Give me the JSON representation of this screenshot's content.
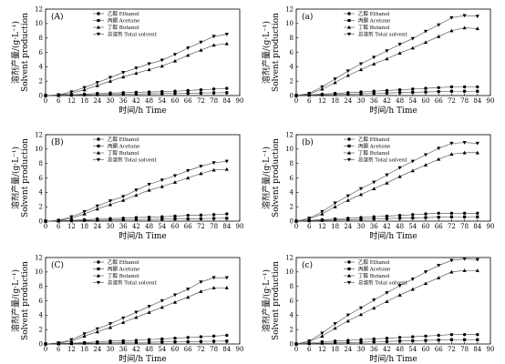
{
  "chart_data": [
    {
      "type": "line",
      "panel_label": "(A)",
      "xlabel": "时间/h Time",
      "ylabel_cn": "溶剂产量/(g·L⁻¹)",
      "ylabel_en": "Solvent production",
      "xlim": [
        0,
        90
      ],
      "ylim": [
        0,
        12
      ],
      "xticks": [
        0,
        6,
        12,
        18,
        24,
        30,
        36,
        42,
        48,
        54,
        60,
        66,
        72,
        78,
        84,
        90
      ],
      "yticks": [
        0,
        2,
        4,
        6,
        8,
        10,
        12
      ],
      "x": [
        0,
        6,
        12,
        18,
        24,
        30,
        36,
        42,
        48,
        54,
        60,
        66,
        72,
        78,
        84
      ],
      "series": [
        {
          "name": "乙醇 Ethanol",
          "marker": "circle",
          "values": [
            0,
            0.05,
            0.1,
            0.2,
            0.3,
            0.35,
            0.4,
            0.45,
            0.5,
            0.55,
            0.6,
            0.7,
            0.8,
            0.9,
            1.0
          ]
        },
        {
          "name": "丙酮 Acetone",
          "marker": "square",
          "values": [
            0,
            0.02,
            0.05,
            0.1,
            0.12,
            0.15,
            0.2,
            0.22,
            0.25,
            0.28,
            0.3,
            0.32,
            0.35,
            0.38,
            0.4
          ]
        },
        {
          "name": "丁醇 Butanol",
          "marker": "triangle-up",
          "values": [
            0,
            0.05,
            0.3,
            0.8,
            1.4,
            2.0,
            2.6,
            3.1,
            3.6,
            4.1,
            4.8,
            5.6,
            6.3,
            7.0,
            7.2
          ]
        },
        {
          "name": "总溶剂 Total solvent",
          "marker": "triangle-down",
          "values": [
            0,
            0.1,
            0.5,
            1.1,
            1.8,
            2.5,
            3.2,
            3.8,
            4.4,
            4.9,
            5.7,
            6.6,
            7.4,
            8.2,
            8.5
          ]
        }
      ]
    },
    {
      "type": "line",
      "panel_label": "(a)",
      "xlabel": "时间/h Time",
      "ylabel_cn": "溶剂产量/(g·L⁻¹)",
      "ylabel_en": "Solvent production",
      "xlim": [
        0,
        90
      ],
      "ylim": [
        0,
        12
      ],
      "xticks": [
        0,
        6,
        12,
        18,
        24,
        30,
        36,
        42,
        48,
        54,
        60,
        66,
        72,
        78,
        84,
        90
      ],
      "yticks": [
        0,
        2,
        4,
        6,
        8,
        10,
        12
      ],
      "x": [
        0,
        6,
        12,
        18,
        24,
        30,
        36,
        42,
        48,
        54,
        60,
        66,
        72,
        78,
        84
      ],
      "series": [
        {
          "name": "乙醇 Ethanol",
          "marker": "circle",
          "values": [
            0,
            0.1,
            0.2,
            0.3,
            0.4,
            0.5,
            0.6,
            0.7,
            0.8,
            0.9,
            1.0,
            1.1,
            1.2,
            1.2,
            1.2
          ]
        },
        {
          "name": "丙酮 Acetone",
          "marker": "square",
          "values": [
            0,
            0.05,
            0.1,
            0.15,
            0.2,
            0.25,
            0.3,
            0.35,
            0.4,
            0.45,
            0.5,
            0.55,
            0.6,
            0.6,
            0.6
          ]
        },
        {
          "name": "丁醇 Butanol",
          "marker": "triangle-up",
          "values": [
            0,
            0.2,
            0.9,
            1.8,
            2.8,
            3.6,
            4.4,
            5.1,
            5.9,
            6.6,
            7.4,
            8.2,
            9.0,
            9.4,
            9.3
          ]
        },
        {
          "name": "总溶剂 Total solvent",
          "marker": "triangle-down",
          "values": [
            0,
            0.3,
            1.2,
            2.3,
            3.4,
            4.4,
            5.3,
            6.2,
            7.1,
            7.9,
            8.9,
            9.8,
            10.8,
            11.1,
            11.0
          ]
        }
      ]
    },
    {
      "type": "line",
      "panel_label": "(B)",
      "xlabel": "时间/h Time",
      "ylabel_cn": "溶剂产量/(g·L⁻¹)",
      "ylabel_en": "Solvent production",
      "xlim": [
        0,
        90
      ],
      "ylim": [
        0,
        12
      ],
      "xticks": [
        0,
        6,
        12,
        18,
        24,
        30,
        36,
        42,
        48,
        54,
        60,
        66,
        72,
        78,
        84,
        90
      ],
      "yticks": [
        0,
        2,
        4,
        6,
        8,
        10,
        12
      ],
      "x": [
        0,
        6,
        12,
        18,
        24,
        30,
        36,
        42,
        48,
        54,
        60,
        66,
        72,
        78,
        84
      ],
      "series": [
        {
          "name": "乙醇 Ethanol",
          "marker": "circle",
          "values": [
            0,
            0.05,
            0.1,
            0.2,
            0.3,
            0.35,
            0.4,
            0.5,
            0.55,
            0.6,
            0.7,
            0.8,
            0.85,
            0.9,
            1.0
          ]
        },
        {
          "name": "丙酮 Acetone",
          "marker": "square",
          "values": [
            0,
            0.02,
            0.05,
            0.1,
            0.12,
            0.15,
            0.2,
            0.22,
            0.25,
            0.28,
            0.3,
            0.32,
            0.35,
            0.38,
            0.4
          ]
        },
        {
          "name": "丁醇 Butanol",
          "marker": "triangle-up",
          "values": [
            0,
            0.05,
            0.4,
            1.0,
            1.7,
            2.3,
            2.9,
            3.6,
            4.3,
            4.8,
            5.4,
            6.0,
            6.6,
            7.1,
            7.2
          ]
        },
        {
          "name": "总溶剂 Total solvent",
          "marker": "triangle-down",
          "values": [
            0,
            0.1,
            0.6,
            1.3,
            2.1,
            2.8,
            3.4,
            4.3,
            5.1,
            5.7,
            6.3,
            7.0,
            7.6,
            8.1,
            8.3
          ]
        }
      ]
    },
    {
      "type": "line",
      "panel_label": "(b)",
      "xlabel": "时间/h Time",
      "ylabel_cn": "溶剂产量/(g·L⁻¹)",
      "ylabel_en": "Solvent production",
      "xlim": [
        0,
        90
      ],
      "ylim": [
        0,
        12
      ],
      "xticks": [
        0,
        6,
        12,
        18,
        24,
        30,
        36,
        42,
        48,
        54,
        60,
        66,
        72,
        78,
        84,
        90
      ],
      "yticks": [
        0,
        2,
        4,
        6,
        8,
        10,
        12
      ],
      "x": [
        0,
        6,
        12,
        18,
        24,
        30,
        36,
        42,
        48,
        54,
        60,
        66,
        72,
        78,
        84
      ],
      "series": [
        {
          "name": "乙醇 Ethanol",
          "marker": "circle",
          "values": [
            0,
            0.1,
            0.2,
            0.3,
            0.4,
            0.5,
            0.6,
            0.7,
            0.8,
            0.9,
            1.0,
            1.1,
            1.1,
            1.1,
            1.1
          ]
        },
        {
          "name": "丙酮 Acetone",
          "marker": "square",
          "values": [
            0,
            0.05,
            0.1,
            0.15,
            0.2,
            0.25,
            0.3,
            0.35,
            0.4,
            0.45,
            0.5,
            0.55,
            0.6,
            0.6,
            0.6
          ]
        },
        {
          "name": "丁醇 Butanol",
          "marker": "triangle-up",
          "values": [
            0,
            0.3,
            1.0,
            2.0,
            2.9,
            3.7,
            4.5,
            5.3,
            6.2,
            7.0,
            7.8,
            8.6,
            9.3,
            9.5,
            9.5
          ]
        },
        {
          "name": "总溶剂 Total solvent",
          "marker": "triangle-down",
          "values": [
            0,
            0.4,
            1.3,
            2.5,
            3.5,
            4.5,
            5.4,
            6.4,
            7.4,
            8.3,
            9.2,
            10.1,
            10.8,
            10.9,
            10.8
          ]
        }
      ]
    },
    {
      "type": "line",
      "panel_label": "(C)",
      "xlabel": "时间/h Time",
      "ylabel_cn": "溶剂产量/(g·L⁻¹)",
      "ylabel_en": "Solvent production",
      "xlim": [
        0,
        90
      ],
      "ylim": [
        0,
        12
      ],
      "xticks": [
        0,
        6,
        12,
        18,
        24,
        30,
        36,
        42,
        48,
        54,
        60,
        66,
        72,
        78,
        84,
        90
      ],
      "yticks": [
        0,
        2,
        4,
        6,
        8,
        10,
        12
      ],
      "x": [
        0,
        6,
        12,
        18,
        24,
        30,
        36,
        42,
        48,
        54,
        60,
        66,
        72,
        78,
        84
      ],
      "series": [
        {
          "name": "乙醇 Ethanol",
          "marker": "circle",
          "values": [
            0,
            0.05,
            0.1,
            0.2,
            0.3,
            0.4,
            0.45,
            0.5,
            0.6,
            0.7,
            0.8,
            0.9,
            1.0,
            1.1,
            1.2
          ]
        },
        {
          "name": "丙酮 Acetone",
          "marker": "square",
          "values": [
            0,
            0.02,
            0.05,
            0.1,
            0.12,
            0.15,
            0.2,
            0.22,
            0.25,
            0.28,
            0.3,
            0.32,
            0.35,
            0.38,
            0.4
          ]
        },
        {
          "name": "丁醇 Butanol",
          "marker": "triangle-up",
          "values": [
            0,
            0.1,
            0.4,
            1.1,
            1.7,
            2.3,
            3.0,
            3.7,
            4.4,
            5.1,
            5.8,
            6.5,
            7.3,
            7.8,
            7.8
          ]
        },
        {
          "name": "总溶剂 Total solvent",
          "marker": "triangle-down",
          "values": [
            0,
            0.15,
            0.6,
            1.4,
            2.1,
            2.8,
            3.6,
            4.4,
            5.2,
            6.0,
            6.8,
            7.6,
            8.6,
            9.2,
            9.2
          ]
        }
      ]
    },
    {
      "type": "line",
      "panel_label": "(c)",
      "xlabel": "时间/h Time",
      "ylabel_cn": "溶剂产量/(g·L⁻¹)",
      "ylabel_en": "Solvent production",
      "xlim": [
        0,
        90
      ],
      "ylim": [
        0,
        12
      ],
      "xticks": [
        0,
        6,
        12,
        18,
        24,
        30,
        36,
        42,
        48,
        54,
        60,
        66,
        72,
        78,
        84,
        90
      ],
      "yticks": [
        0,
        2,
        4,
        6,
        8,
        10,
        12
      ],
      "x": [
        0,
        6,
        12,
        18,
        24,
        30,
        36,
        42,
        48,
        54,
        60,
        66,
        72,
        78,
        84
      ],
      "series": [
        {
          "name": "乙醇 Ethanol",
          "marker": "circle",
          "values": [
            0,
            0.1,
            0.3,
            0.4,
            0.5,
            0.6,
            0.7,
            0.8,
            0.9,
            1.0,
            1.1,
            1.2,
            1.3,
            1.3,
            1.3
          ]
        },
        {
          "name": "丙酮 Acetone",
          "marker": "square",
          "values": [
            0,
            0.05,
            0.1,
            0.15,
            0.2,
            0.25,
            0.3,
            0.35,
            0.4,
            0.45,
            0.5,
            0.55,
            0.6,
            0.6,
            0.6
          ]
        },
        {
          "name": "丁醇 Butanol",
          "marker": "triangle-up",
          "values": [
            0,
            0.3,
            1.1,
            2.2,
            3.2,
            4.1,
            5.0,
            5.9,
            6.8,
            7.6,
            8.4,
            9.2,
            10.0,
            10.2,
            10.2
          ]
        },
        {
          "name": "总溶剂 Total solvent",
          "marker": "triangle-down",
          "values": [
            0,
            0.4,
            1.5,
            2.8,
            4.0,
            5.0,
            6.1,
            7.1,
            8.1,
            9.0,
            10.0,
            10.9,
            11.6,
            11.8,
            11.7
          ]
        }
      ]
    }
  ]
}
